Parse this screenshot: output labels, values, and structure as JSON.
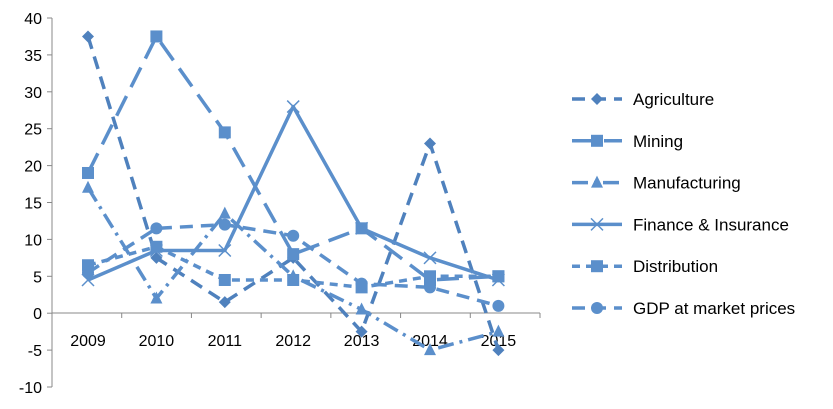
{
  "chart_data": {
    "type": "line",
    "categories": [
      "2009",
      "2010",
      "2011",
      "2012",
      "2013",
      "2014",
      "2015"
    ],
    "ylim": [
      -10,
      40
    ],
    "yticks": [
      "40",
      "35",
      "30",
      "25",
      "20",
      "15",
      "10",
      "5",
      "0",
      "-5",
      "-10"
    ],
    "grid": false,
    "legend_position": "right",
    "series": [
      {
        "name": "Agriculture",
        "values": [
          37.5,
          7.5,
          1.5,
          7.5,
          -2.5,
          23,
          -5
        ],
        "color": "#4f81bd",
        "marker": "diamond",
        "dash": "long-dash"
      },
      {
        "name": "Mining",
        "values": [
          19,
          37.5,
          24.5,
          8,
          11.5,
          4.5,
          5
        ],
        "color": "#5b8fcb",
        "marker": "square",
        "dash": "dash"
      },
      {
        "name": "Manufacturing",
        "values": [
          17,
          2,
          13.5,
          5,
          0.5,
          -5,
          -2.5
        ],
        "color": "#5b8fcb",
        "marker": "triangle",
        "dash": "dash-dot"
      },
      {
        "name": "Finance & Insurance",
        "values": [
          4.5,
          8.5,
          8.5,
          28,
          11.5,
          7.5,
          4.5
        ],
        "color": "#5b8fcb",
        "marker": "x",
        "dash": "solid"
      },
      {
        "name": "Distribution",
        "values": [
          6.5,
          9,
          4.5,
          4.5,
          3.5,
          5,
          5
        ],
        "color": "#5b8fcb",
        "marker": "square",
        "dash": "short-dash"
      },
      {
        "name": "GDP at market prices",
        "values": [
          5.5,
          11.5,
          12,
          10.5,
          4,
          3.5,
          1
        ],
        "color": "#5b8fcb",
        "marker": "circle",
        "dash": "long-dash"
      }
    ]
  }
}
